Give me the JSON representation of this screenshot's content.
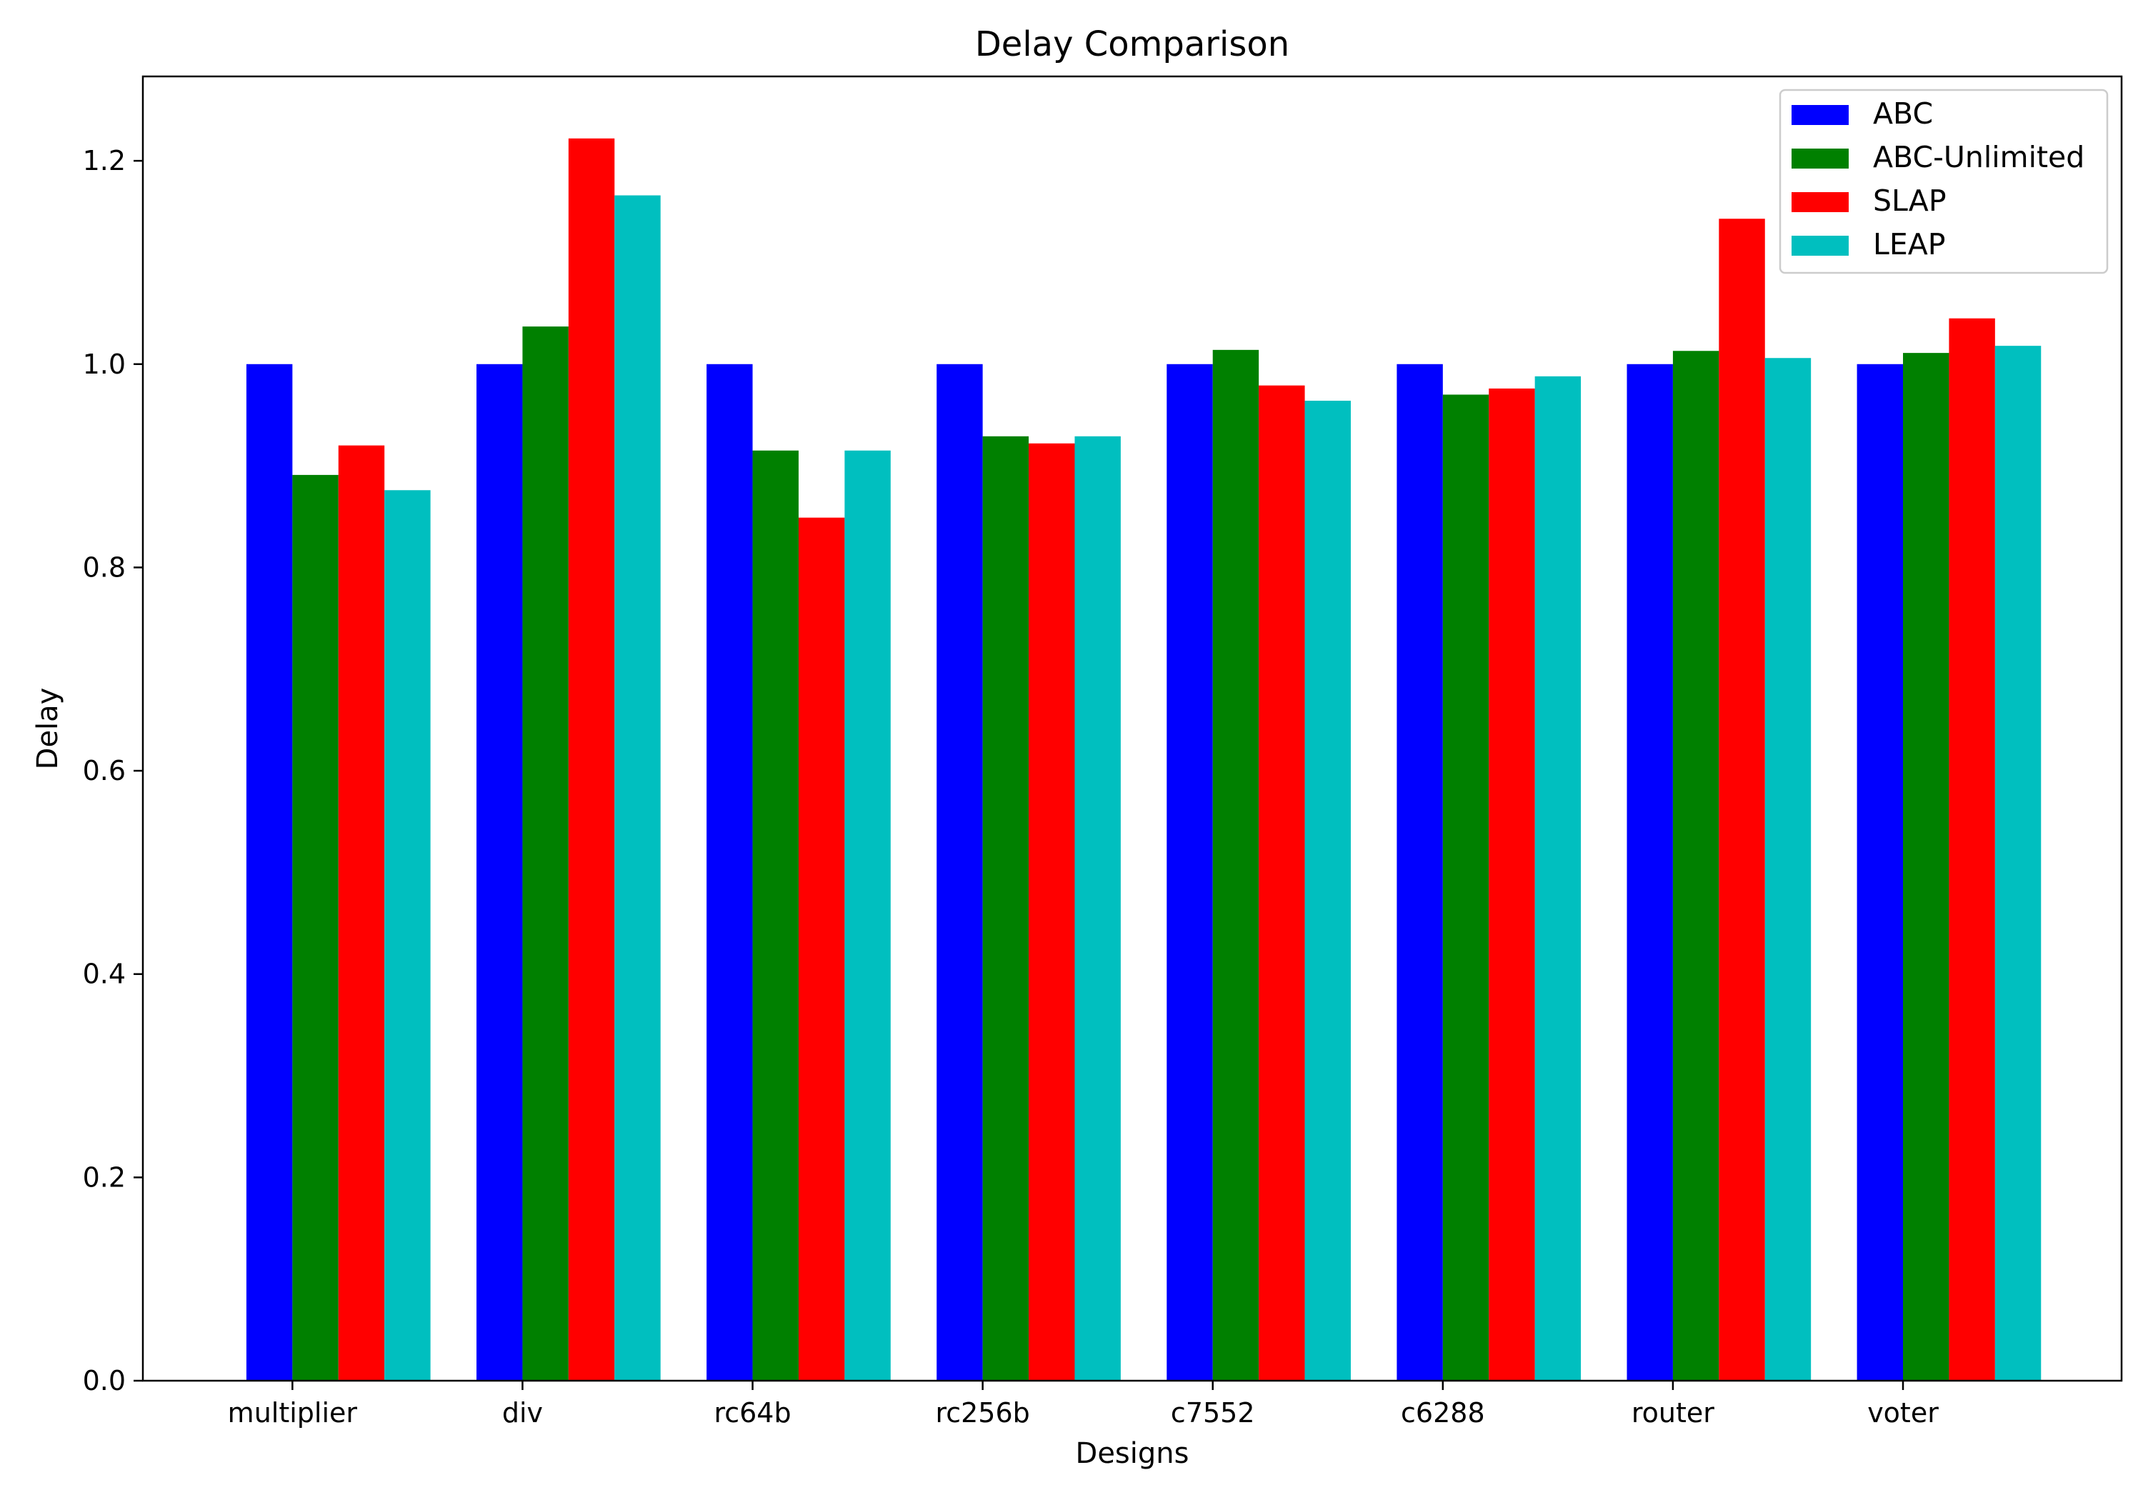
{
  "chart_data": {
    "type": "bar",
    "title": "Delay Comparison",
    "xlabel": "Designs",
    "ylabel": "Delay",
    "categories": [
      "multiplier",
      "div",
      "rc64b",
      "rc256b",
      "c7552",
      "c6288",
      "router",
      "voter"
    ],
    "series": [
      {
        "name": "ABC",
        "color": "#0000ff",
        "values": [
          1.0,
          1.0,
          1.0,
          1.0,
          1.0,
          1.0,
          1.0,
          1.0
        ]
      },
      {
        "name": "ABC-Unlimited",
        "color": "#008000",
        "values": [
          0.891,
          1.037,
          0.915,
          0.929,
          1.014,
          0.97,
          1.013,
          1.011
        ]
      },
      {
        "name": "SLAP",
        "color": "#ff0000",
        "values": [
          0.92,
          1.222,
          0.849,
          0.922,
          0.979,
          0.976,
          1.143,
          1.045
        ]
      },
      {
        "name": "LEAP",
        "color": "#00bfbf",
        "values": [
          0.876,
          1.166,
          0.915,
          0.929,
          0.964,
          0.988,
          1.006,
          1.018
        ]
      }
    ],
    "yticks": [
      "0.0",
      "0.2",
      "0.4",
      "0.6",
      "0.8",
      "1.0",
      "1.2"
    ],
    "ylim": [
      0,
      1.283
    ],
    "grid": false,
    "legend_position": "top-right"
  }
}
